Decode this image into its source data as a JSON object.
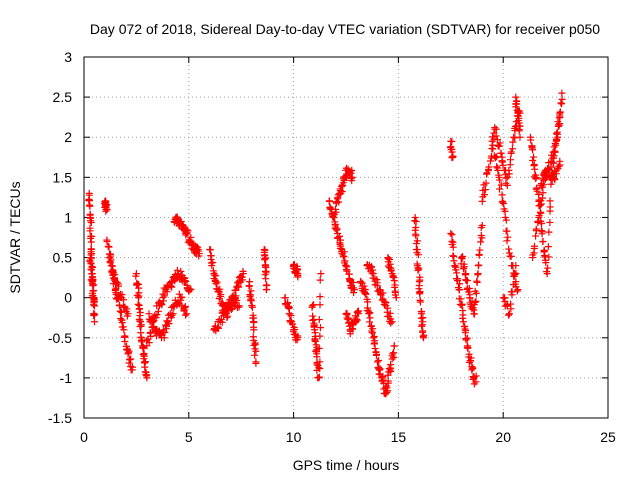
{
  "chart_data": {
    "type": "scatter",
    "title": "Day 072 of 2018, Sidereal Day-to-day VTEC variation (SDTVAR) for receiver p050",
    "xlabel": "GPS time / hours",
    "ylabel": "SDTVAR / TECUs",
    "xlim": [
      0,
      25
    ],
    "ylim": [
      -1.5,
      3
    ],
    "xticks": [
      0,
      5,
      10,
      15,
      20,
      25
    ],
    "yticks": [
      -1.5,
      -1,
      -0.5,
      0,
      0.5,
      1,
      1.5,
      2,
      2.5,
      3
    ],
    "xtick_labels": [
      "0",
      "5",
      "10",
      "15",
      "20",
      "25"
    ],
    "ytick_labels": [
      "-1.5",
      "-1",
      "-0.5",
      "0",
      "0.5",
      "1",
      "1.5",
      "2",
      "2.5",
      "3"
    ],
    "grid": true,
    "marker": "+",
    "marker_color": "#ff0000",
    "series": [
      {
        "name": "SDTVAR",
        "segments": [
          {
            "x": [
              0.25,
              0.3,
              0.35,
              0.4,
              0.45,
              0.5
            ],
            "y": [
              1.3,
              1.0,
              0.6,
              0.3,
              0.0,
              -0.3
            ]
          },
          {
            "x": [
              0.3,
              0.4,
              0.5
            ],
            "y": [
              0.5,
              0.2,
              -0.1
            ]
          },
          {
            "x": [
              1.0,
              1.05,
              1.1
            ],
            "y": [
              1.2,
              1.15,
              1.1
            ]
          },
          {
            "x": [
              1.1,
              1.3,
              1.5,
              1.7,
              1.9,
              2.1,
              2.3
            ],
            "y": [
              0.7,
              0.4,
              0.1,
              -0.1,
              -0.4,
              -0.7,
              -0.9
            ]
          },
          {
            "x": [
              1.2,
              1.5,
              1.8,
              2.1
            ],
            "y": [
              0.5,
              0.2,
              0.0,
              -0.2
            ]
          },
          {
            "x": [
              2.5,
              2.6,
              2.7,
              2.8,
              2.9,
              3.0
            ],
            "y": [
              0.3,
              0.0,
              -0.3,
              -0.6,
              -0.8,
              -1.0
            ]
          },
          {
            "x": [
              3.0,
              3.3,
              3.6,
              3.9,
              4.2,
              4.5,
              4.8,
              5.1
            ],
            "y": [
              -0.6,
              -0.3,
              -0.1,
              0.1,
              0.2,
              0.3,
              0.2,
              0.1
            ]
          },
          {
            "x": [
              3.1,
              3.4,
              3.7,
              4.0,
              4.3,
              4.6,
              4.9
            ],
            "y": [
              -0.2,
              -0.4,
              -0.5,
              -0.3,
              -0.1,
              0.0,
              -0.2
            ]
          },
          {
            "x": [
              4.3,
              4.5,
              4.7,
              4.9,
              5.1,
              5.3,
              5.5
            ],
            "y": [
              0.95,
              0.95,
              0.9,
              0.8,
              0.7,
              0.6,
              0.55
            ]
          },
          {
            "x": [
              6.0,
              6.2,
              6.4,
              6.6,
              6.8,
              7.0,
              7.2,
              7.4,
              7.6
            ],
            "y": [
              0.6,
              0.3,
              0.1,
              -0.1,
              -0.2,
              -0.1,
              0.0,
              0.2,
              0.3
            ]
          },
          {
            "x": [
              6.2,
              6.5,
              6.8,
              7.1,
              7.4
            ],
            "y": [
              -0.4,
              -0.3,
              -0.1,
              0.0,
              -0.1
            ]
          },
          {
            "x": [
              7.9,
              8.0,
              8.1,
              8.2
            ],
            "y": [
              0.2,
              -0.1,
              -0.4,
              -0.8
            ]
          },
          {
            "x": [
              8.6,
              8.65,
              8.7
            ],
            "y": [
              0.6,
              0.4,
              0.1
            ]
          },
          {
            "x": [
              9.6,
              9.8,
              10.0,
              10.2
            ],
            "y": [
              0.0,
              -0.2,
              -0.4,
              -0.5
            ]
          },
          {
            "x": [
              10.0,
              10.1,
              10.2
            ],
            "y": [
              0.4,
              0.35,
              0.3
            ]
          },
          {
            "x": [
              10.9,
              11.0,
              11.1,
              11.2,
              11.3
            ],
            "y": [
              -0.1,
              -0.4,
              -0.7,
              -1.0,
              0.3
            ]
          },
          {
            "x": [
              11.7,
              11.9,
              12.1,
              12.3,
              12.5,
              12.7,
              12.9
            ],
            "y": [
              1.2,
              1.0,
              0.8,
              0.6,
              0.4,
              0.2,
              0.1
            ]
          },
          {
            "x": [
              12.0,
              12.2,
              12.4,
              12.6,
              12.8
            ],
            "y": [
              1.1,
              1.3,
              1.5,
              1.6,
              1.5
            ]
          },
          {
            "x": [
              12.5,
              12.7,
              12.9,
              13.1
            ],
            "y": [
              -0.2,
              -0.4,
              -0.3,
              -0.2
            ]
          },
          {
            "x": [
              13.2,
              13.4,
              13.6,
              13.8,
              14.0,
              14.2,
              14.4,
              14.6,
              14.8
            ],
            "y": [
              0.2,
              0.1,
              -0.2,
              -0.5,
              -0.8,
              -1.0,
              -1.2,
              -0.9,
              -0.6
            ]
          },
          {
            "x": [
              13.5,
              13.8,
              14.1,
              14.4,
              14.7
            ],
            "y": [
              0.4,
              0.3,
              0.1,
              -0.1,
              -0.3
            ]
          },
          {
            "x": [
              14.5,
              14.7,
              14.9
            ],
            "y": [
              0.5,
              0.3,
              0.0
            ]
          },
          {
            "x": [
              15.8,
              15.9,
              16.0,
              16.1,
              16.2
            ],
            "y": [
              1.0,
              0.6,
              0.2,
              -0.2,
              -0.5
            ]
          },
          {
            "x": [
              17.5,
              17.6
            ],
            "y": [
              1.95,
              1.75
            ]
          },
          {
            "x": [
              17.5,
              17.7,
              17.9,
              18.1,
              18.3,
              18.5,
              18.7
            ],
            "y": [
              0.8,
              0.4,
              0.1,
              -0.3,
              -0.6,
              -0.9,
              -1.05
            ]
          },
          {
            "x": [
              18.0,
              18.2,
              18.4,
              18.6,
              18.8,
              19.0
            ],
            "y": [
              0.5,
              0.3,
              0.0,
              -0.2,
              0.3,
              0.9
            ]
          },
          {
            "x": [
              19.0,
              19.3,
              19.6,
              19.9,
              20.2,
              20.5,
              20.8
            ],
            "y": [
              1.2,
              1.6,
              2.1,
              1.8,
              1.4,
              2.0,
              2.3
            ]
          },
          {
            "x": [
              19.5,
              19.8,
              20.1,
              20.4,
              20.7
            ],
            "y": [
              1.9,
              1.5,
              1.0,
              0.4,
              0.1
            ]
          },
          {
            "x": [
              20.0,
              20.3,
              20.6
            ],
            "y": [
              0.0,
              -0.2,
              0.4
            ]
          },
          {
            "x": [
              20.6,
              20.7,
              20.8
            ],
            "y": [
              2.5,
              2.3,
              2.0
            ]
          },
          {
            "x": [
              21.3,
              21.5,
              21.7,
              21.9,
              22.1,
              22.3,
              22.5,
              22.7
            ],
            "y": [
              2.0,
              1.6,
              1.2,
              0.7,
              0.3,
              1.5,
              1.9,
              2.3
            ]
          },
          {
            "x": [
              21.4,
              21.7,
              22.0,
              22.3,
              22.6,
              22.8
            ],
            "y": [
              0.5,
              1.0,
              1.5,
              1.7,
              2.0,
              2.55
            ]
          },
          {
            "x": [
              21.8,
              22.1,
              22.4,
              22.7
            ],
            "y": [
              1.4,
              1.6,
              1.5,
              1.7
            ]
          }
        ]
      }
    ]
  }
}
